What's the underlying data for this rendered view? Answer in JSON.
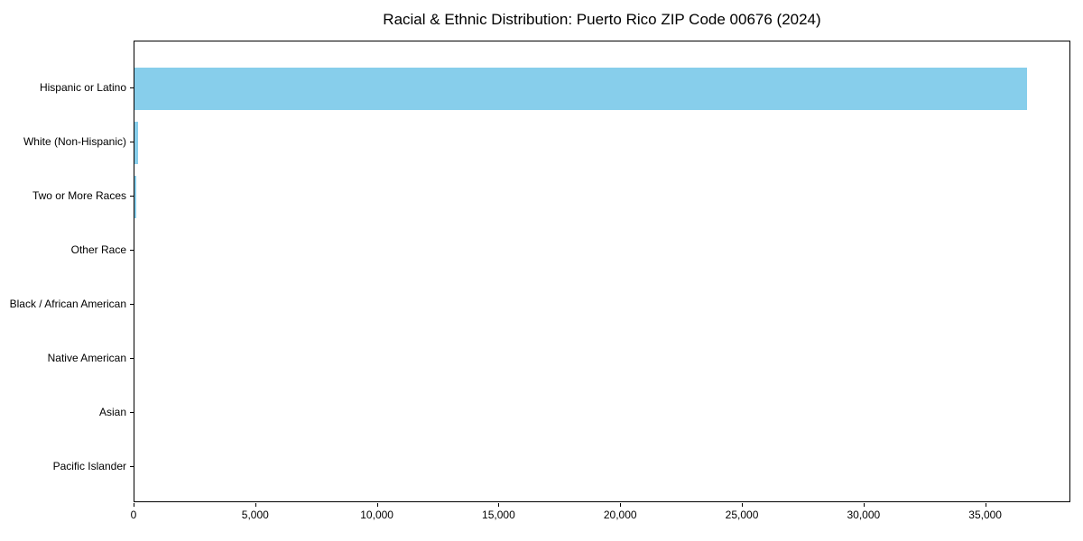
{
  "chart_data": {
    "type": "bar",
    "orientation": "horizontal",
    "title": "Racial & Ethnic Distribution: Puerto Rico ZIP Code 00676 (2024)",
    "xlabel": "",
    "ylabel": "",
    "categories": [
      "Hispanic or Latino",
      "White (Non-Hispanic)",
      "Two or More Races",
      "Other Race",
      "Black / African American",
      "Native American",
      "Asian",
      "Pacific Islander"
    ],
    "values": [
      36700,
      160,
      60,
      0,
      0,
      0,
      0,
      0
    ],
    "xlim": [
      0,
      38500
    ],
    "x_ticks": [
      0,
      5000,
      10000,
      15000,
      20000,
      25000,
      30000,
      35000
    ],
    "x_tick_labels": [
      "0",
      "5,000",
      "10,000",
      "15,000",
      "20,000",
      "25,000",
      "30,000",
      "35,000"
    ],
    "bar_color": "#87CEEB",
    "background_color": "#ffffff",
    "text_color": "#000000",
    "grid": false,
    "legend": "none"
  }
}
